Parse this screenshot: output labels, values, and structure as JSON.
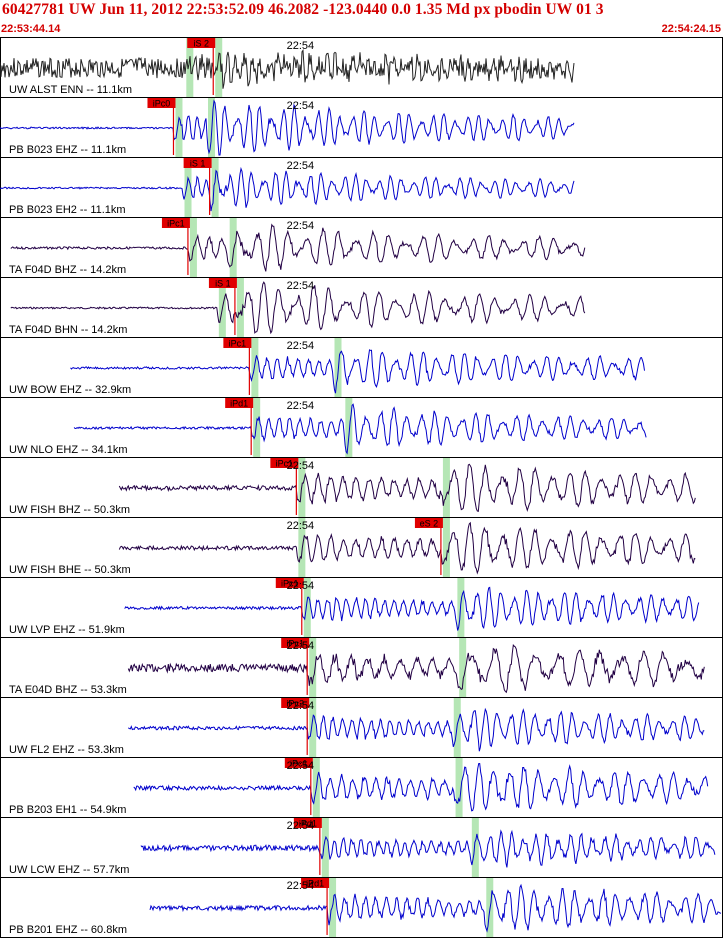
{
  "header": {
    "title": "60427781 UW Jun 11, 2012 22:53:52.09    46.2082 -123.0440  0.0 1.35 Md px pbodin UW 01    3",
    "start_time": "22:53:44.14",
    "end_time": "22:54:24.15"
  },
  "colors": {
    "header_text": "#d40000",
    "pick_box": "#e00000",
    "pick_line": "#e00000",
    "s_window": "#b5e6b5",
    "trace_dark": "#222222",
    "trace_blue": "#0000cc",
    "trace_purple": "#220044",
    "travel_curve": "#000000",
    "decay_curve": "#cc0000"
  },
  "chart_data": {
    "type": "line",
    "title": "60427781 UW Jun 11, 2012 22:53:52.09    46.2082 -123.0440  0.0 1.35 Md px pbodin UW 01    3",
    "x_range": [
      "22:53:44.14",
      "22:54:24.15"
    ],
    "minute_marker": "22:54",
    "traces": [
      {
        "label": "UW ALST ENN -- 11.1km",
        "pick": "iS 2",
        "color": "dark",
        "start_sec": 0.0,
        "end_sec": 31.8,
        "p_sec": 10.2,
        "s_sec": 11.8,
        "amp": 0.25,
        "noise": 0.34,
        "freq": 1.8
      },
      {
        "label": "PB B023 EHZ -- 11.1km",
        "pick": "iPc0",
        "color": "blue",
        "start_sec": 0.0,
        "end_sec": 31.8,
        "p_sec": 9.6,
        "s_sec": 11.4,
        "amp": 0.55,
        "noise": 0.01,
        "freq": 1.3
      },
      {
        "label": "PB B023 EH2 -- 11.1km",
        "pick": "iS 1",
        "color": "blue",
        "start_sec": 0.0,
        "end_sec": 31.8,
        "p_sec": 10.1,
        "s_sec": 11.6,
        "amp": 0.42,
        "noise": 0.01,
        "freq": 1.3
      },
      {
        "label": "TA F04D BHZ -- 14.2km",
        "pick": "iPc1",
        "color": "purple",
        "start_sec": 0.6,
        "end_sec": 32.4,
        "p_sec": 10.4,
        "s_sec": 12.6,
        "amp": 0.5,
        "noise": 0.02,
        "freq": 0.9
      },
      {
        "label": "TA F04D BHN -- 14.2km",
        "pick": "iS 1",
        "color": "purple",
        "start_sec": 0.6,
        "end_sec": 32.4,
        "p_sec": 12.0,
        "s_sec": 13.0,
        "amp": 0.55,
        "noise": 0.01,
        "freq": 0.9
      },
      {
        "label": "UW BOW EHZ -- 32.9km",
        "pick": "iPc1",
        "color": "blue",
        "start_sec": 3.9,
        "end_sec": 35.7,
        "p_sec": 13.8,
        "s_sec": 18.4,
        "amp": 0.48,
        "noise": 0.02,
        "freq": 1.1
      },
      {
        "label": "UW NLO EHZ -- 34.1km",
        "pick": "iPd1",
        "color": "blue",
        "start_sec": 4.1,
        "end_sec": 35.8,
        "p_sec": 13.9,
        "s_sec": 19.0,
        "amp": 0.48,
        "noise": 0.02,
        "freq": 1.1
      },
      {
        "label": "UW FISH BHZ -- 50.3km",
        "pick": "iPc1",
        "color": "purple",
        "start_sec": 6.6,
        "end_sec": 38.5,
        "p_sec": 16.4,
        "s_sec": 24.4,
        "amp": 0.58,
        "noise": 0.06,
        "freq": 0.9
      },
      {
        "label": "UW FISH BHE -- 50.3km",
        "pick": "eS 2",
        "color": "purple",
        "start_sec": 6.6,
        "end_sec": 38.5,
        "p_sec": 16.4,
        "s_sec": 24.4,
        "amp": 0.6,
        "noise": 0.05,
        "freq": 0.9
      },
      {
        "label": "UW LVP EHZ -- 51.9km",
        "pick": "iPc1",
        "color": "blue",
        "start_sec": 6.9,
        "end_sec": 38.7,
        "p_sec": 16.7,
        "s_sec": 25.2,
        "amp": 0.5,
        "noise": 0.03,
        "freq": 1.2
      },
      {
        "label": "TA E04D BHZ -- 53.3km",
        "pick": "iPc1",
        "color": "purple",
        "start_sec": 7.1,
        "end_sec": 39.0,
        "p_sec": 17.0,
        "s_sec": 25.3,
        "amp": 0.6,
        "noise": 0.12,
        "freq": 0.7
      },
      {
        "label": "UW FL2 EHZ -- 53.3km",
        "pick": "iPc2",
        "color": "blue",
        "start_sec": 7.1,
        "end_sec": 39.0,
        "p_sec": 17.0,
        "s_sec": 25.0,
        "amp": 0.5,
        "noise": 0.04,
        "freq": 1.2
      },
      {
        "label": "PB B203 EH1 -- 54.9km",
        "pick": "iPc1",
        "color": "blue",
        "start_sec": 7.4,
        "end_sec": 39.2,
        "p_sec": 17.2,
        "s_sec": 25.1,
        "amp": 0.6,
        "noise": 0.05,
        "freq": 1.0
      },
      {
        "label": "UW LCW EHZ -- 57.7km",
        "pick": "iPd1",
        "color": "blue",
        "start_sec": 7.8,
        "end_sec": 39.6,
        "p_sec": 17.7,
        "s_sec": 26.0,
        "amp": 0.42,
        "noise": 0.08,
        "freq": 1.3
      },
      {
        "label": "PB B201 EHZ -- 60.8km",
        "pick": "iPd1",
        "color": "blue",
        "start_sec": 8.3,
        "end_sec": 40.0,
        "p_sec": 18.1,
        "s_sec": 26.8,
        "amp": 0.55,
        "noise": 0.06,
        "freq": 1.1
      }
    ]
  }
}
